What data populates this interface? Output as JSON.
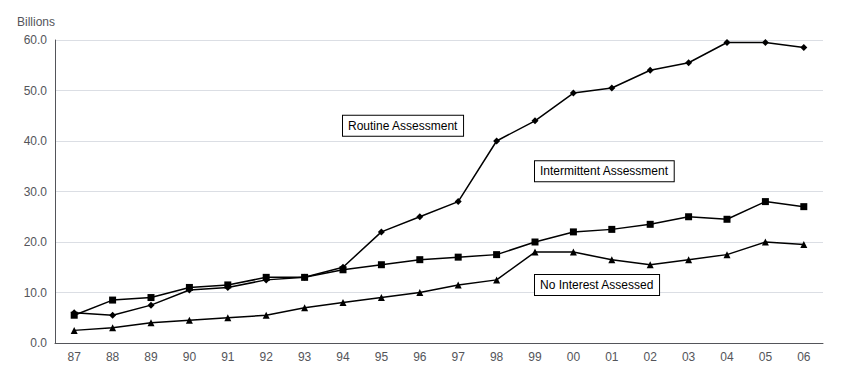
{
  "chart_data": {
    "type": "line",
    "categories": [
      "87",
      "88",
      "89",
      "90",
      "91",
      "92",
      "93",
      "94",
      "95",
      "96",
      "97",
      "98",
      "99",
      "00",
      "01",
      "02",
      "03",
      "04",
      "05",
      "06"
    ],
    "series": [
      {
        "color": "#000000",
        "marker": "diamond",
        "values": [
          6.0,
          5.5,
          7.5,
          10.5,
          11.0,
          12.5,
          13.0,
          15.0,
          22.0,
          25.0,
          28.0,
          40.0,
          44.0,
          49.5,
          50.5,
          54.0,
          55.5,
          59.5,
          59.5,
          58.5
        ]
      },
      {
        "color": "#000000",
        "marker": "square",
        "values": [
          5.5,
          8.5,
          9.0,
          11.0,
          11.5,
          13.0,
          13.0,
          14.5,
          15.5,
          16.5,
          17.0,
          17.5,
          20.0,
          22.0,
          22.5,
          23.5,
          25.0,
          24.5,
          28.0,
          27.0
        ]
      },
      {
        "color": "#000000",
        "marker": "triangle",
        "values": [
          2.5,
          3.0,
          4.0,
          4.5,
          5.0,
          5.5,
          7.0,
          8.0,
          9.0,
          10.0,
          11.5,
          12.5,
          18.0,
          18.0,
          16.5,
          15.5,
          16.5,
          17.5,
          20.0,
          19.5
        ]
      }
    ],
    "ylabel": "Billions",
    "ylim": [
      0,
      60
    ],
    "yticks": [
      {
        "value": 0,
        "label": "0.0"
      },
      {
        "value": 10,
        "label": "10.0"
      },
      {
        "value": 20,
        "label": "20.0"
      },
      {
        "value": 30,
        "label": "30.0"
      },
      {
        "value": 40,
        "label": "40.0"
      },
      {
        "value": 50,
        "label": "50.0"
      },
      {
        "value": 60,
        "label": "60.0"
      }
    ],
    "grid": true,
    "annotations": [
      {
        "text": "Routine Assessment",
        "x": "94",
        "y": 43.0
      },
      {
        "text": "Intermittent Assessment",
        "x": "99",
        "y": 34.0
      },
      {
        "text": "No Interest Assessed",
        "x": "99",
        "y": 11.5
      }
    ]
  }
}
